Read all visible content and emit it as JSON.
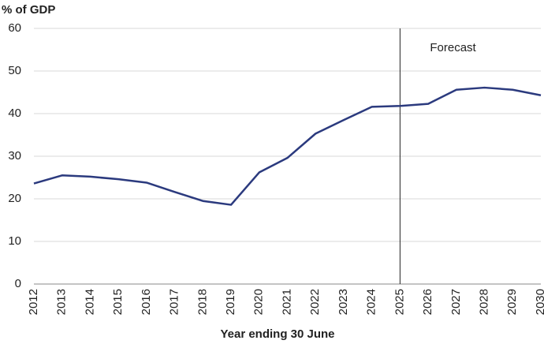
{
  "chart_data": {
    "type": "line",
    "y_axis_label": "% of GDP",
    "x_axis_label": "Year ending 30 June",
    "categories": [
      "2012",
      "2013",
      "2014",
      "2015",
      "2016",
      "2017",
      "2018",
      "2019",
      "2020",
      "2021",
      "2022",
      "2023",
      "2024",
      "2025",
      "2026",
      "2027",
      "2028",
      "2029",
      "2030"
    ],
    "series": [
      {
        "color": "#2b3a7e",
        "values": [
          23.6,
          25.5,
          25.2,
          24.6,
          23.8,
          21.6,
          19.5,
          18.6,
          26.2,
          29.6,
          35.3,
          38.5,
          41.6,
          41.8,
          42.3,
          45.6,
          46.1,
          45.6,
          44.3
        ]
      }
    ],
    "ylim": [
      0,
      60
    ],
    "yticks": [
      0,
      10,
      20,
      30,
      40,
      50,
      60
    ],
    "grid": true,
    "annotations": [
      {
        "text": "Forecast",
        "x": "2025"
      }
    ]
  }
}
